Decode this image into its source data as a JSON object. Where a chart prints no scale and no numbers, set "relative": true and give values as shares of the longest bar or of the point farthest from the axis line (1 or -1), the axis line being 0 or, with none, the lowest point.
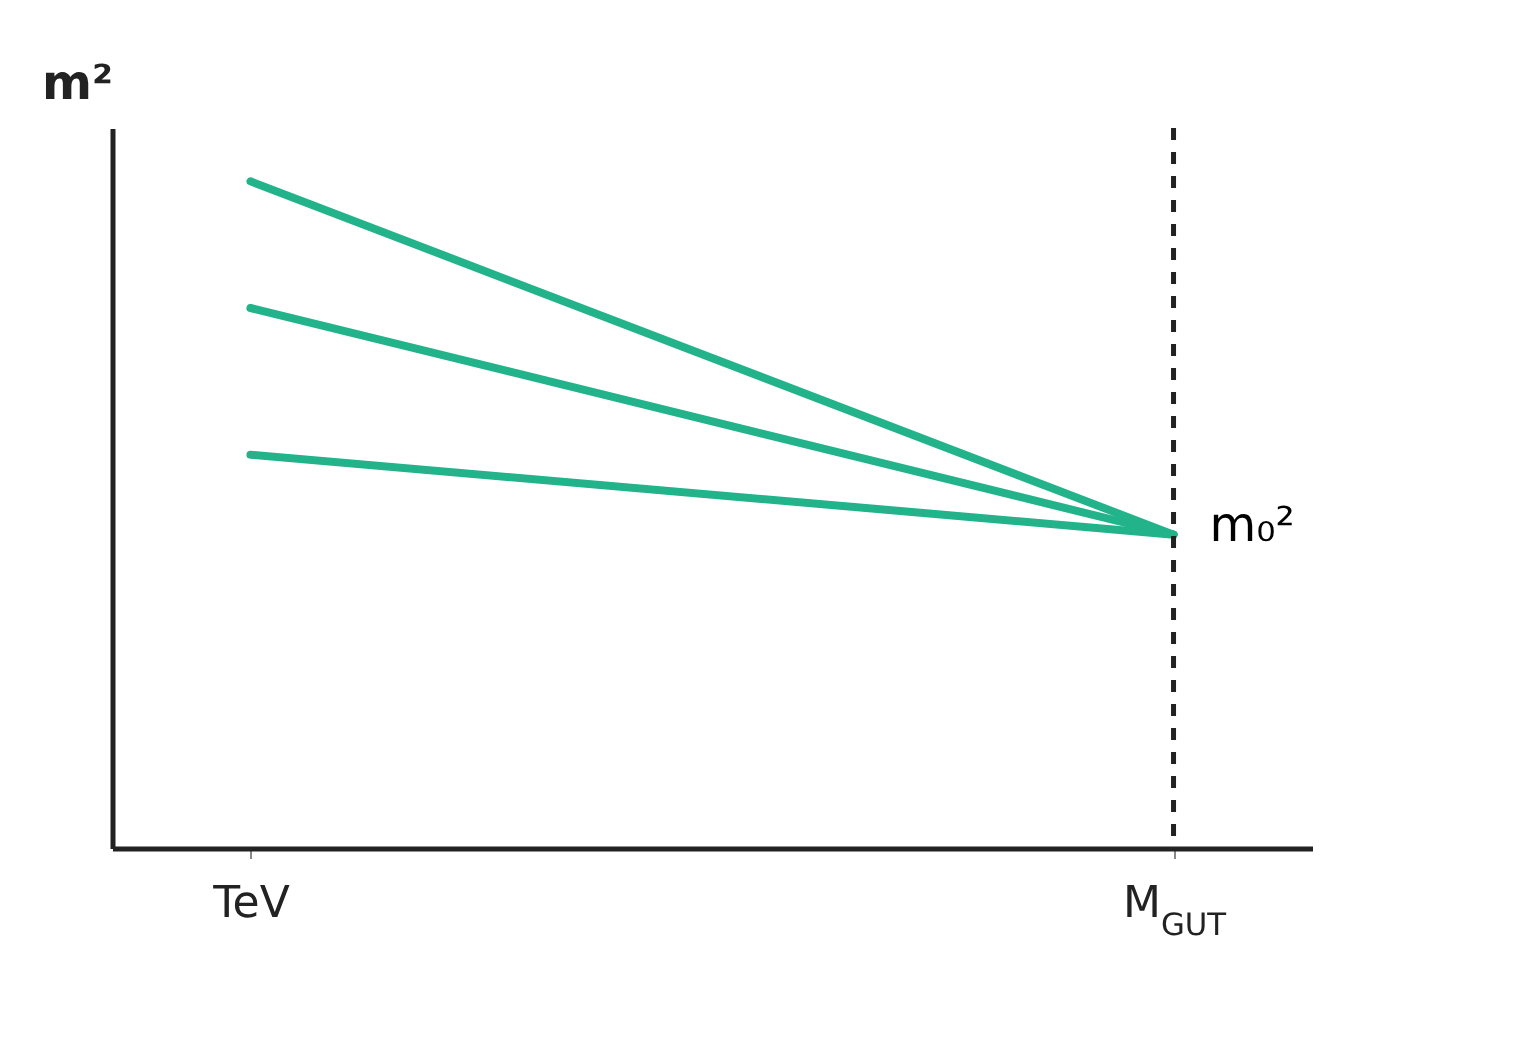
{
  "chart_data": {
    "type": "line",
    "relative": true,
    "ylabel": "m²",
    "categories": [
      "TeV",
      "M$_{GUT}$"
    ],
    "series": [
      {
        "color": "#22b38a",
        "values": [
          1,
          0.47
        ]
      },
      {
        "color": "#22b38a",
        "values": [
          0.81,
          0.47
        ]
      },
      {
        "color": "#22b38a",
        "values": [
          0.59,
          0.47
        ]
      }
    ],
    "annotations": [
      {
        "text": "m₀²",
        "x": "M$_{GUT}$",
        "y": 0.47
      }
    ],
    "ref_lines": [
      {
        "axis": "x",
        "value": "M$_{GUT}$",
        "line_style": "dashed",
        "color": "#222222"
      }
    ],
    "grid": false,
    "legend": false
  }
}
